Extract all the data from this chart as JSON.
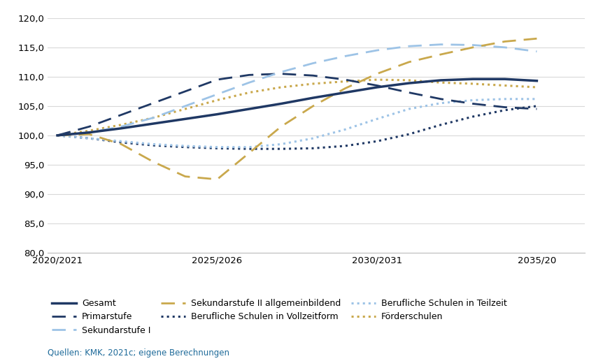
{
  "series": {
    "Gesamt": {
      "x": [
        2020,
        2021,
        2022,
        2023,
        2024,
        2025,
        2026,
        2027,
        2028,
        2029,
        2030,
        2031,
        2032,
        2033,
        2034,
        2035
      ],
      "y": [
        100.0,
        100.5,
        101.2,
        102.0,
        102.8,
        103.6,
        104.5,
        105.4,
        106.4,
        107.3,
        108.2,
        108.9,
        109.4,
        109.6,
        109.6,
        109.3
      ],
      "color": "#1f3864",
      "linestyle": "solid",
      "linewidth": 2.5
    },
    "Primarstufe": {
      "x": [
        2020,
        2021,
        2022,
        2023,
        2024,
        2025,
        2026,
        2027,
        2028,
        2029,
        2030,
        2031,
        2032,
        2033,
        2034,
        2035
      ],
      "y": [
        100.0,
        101.5,
        103.5,
        105.5,
        107.5,
        109.5,
        110.3,
        110.5,
        110.2,
        109.5,
        108.5,
        107.3,
        106.2,
        105.4,
        104.8,
        104.5
      ],
      "color": "#1f3864",
      "linestyle": "dashed",
      "linewidth": 2.0
    },
    "Sekundarstufe I": {
      "x": [
        2020,
        2021,
        2022,
        2023,
        2024,
        2025,
        2026,
        2027,
        2028,
        2029,
        2030,
        2031,
        2032,
        2033,
        2034,
        2035
      ],
      "y": [
        100.0,
        100.5,
        101.5,
        103.0,
        105.0,
        107.0,
        109.0,
        110.8,
        112.3,
        113.5,
        114.5,
        115.2,
        115.5,
        115.4,
        115.0,
        114.3
      ],
      "color": "#9dc3e6",
      "linestyle": "dashed",
      "linewidth": 2.0
    },
    "Sekundarstufe II allgemeinbildend": {
      "x": [
        2020,
        2021,
        2022,
        2023,
        2024,
        2025,
        2026,
        2027,
        2028,
        2029,
        2030,
        2031,
        2032,
        2033,
        2034,
        2035
      ],
      "y": [
        100.0,
        100.2,
        98.5,
        95.5,
        93.0,
        92.5,
        97.0,
        101.5,
        105.0,
        108.0,
        110.5,
        112.5,
        113.8,
        115.0,
        116.0,
        116.5
      ],
      "color": "#c9a84c",
      "linestyle": "dashed",
      "linewidth": 2.0
    },
    "Berufliche Schulen in Vollzeitform": {
      "x": [
        2020,
        2021,
        2022,
        2023,
        2024,
        2025,
        2026,
        2027,
        2028,
        2029,
        2030,
        2031,
        2032,
        2033,
        2034,
        2035
      ],
      "y": [
        100.0,
        99.5,
        98.8,
        98.3,
        98.0,
        97.8,
        97.7,
        97.7,
        97.8,
        98.2,
        99.0,
        100.2,
        101.8,
        103.2,
        104.3,
        105.0
      ],
      "color": "#1f3864",
      "linestyle": "dotted",
      "linewidth": 2.2
    },
    "Berufliche Schulen in Teilzeit": {
      "x": [
        2020,
        2021,
        2022,
        2023,
        2024,
        2025,
        2026,
        2027,
        2028,
        2029,
        2030,
        2031,
        2032,
        2033,
        2034,
        2035
      ],
      "y": [
        100.0,
        99.5,
        99.0,
        98.5,
        98.2,
        98.0,
        98.0,
        98.5,
        99.5,
        101.0,
        102.8,
        104.5,
        105.5,
        106.0,
        106.2,
        106.2
      ],
      "color": "#9dc3e6",
      "linestyle": "dotted",
      "linewidth": 2.2
    },
    "Foerderschulen": {
      "x": [
        2020,
        2021,
        2022,
        2023,
        2024,
        2025,
        2026,
        2027,
        2028,
        2029,
        2030,
        2031,
        2032,
        2033,
        2034,
        2035
      ],
      "y": [
        100.0,
        100.8,
        101.8,
        103.0,
        104.5,
        106.0,
        107.3,
        108.2,
        108.8,
        109.2,
        109.5,
        109.4,
        109.0,
        108.8,
        108.5,
        108.2
      ],
      "color": "#c9a84c",
      "linestyle": "dotted",
      "linewidth": 2.2
    }
  },
  "ylim": [
    80.0,
    120.0
  ],
  "yticks": [
    80.0,
    85.0,
    90.0,
    95.0,
    100.0,
    105.0,
    110.0,
    115.0,
    120.0
  ],
  "xlim_min": 2019.7,
  "xlim_max": 2036.5,
  "xtick_positions": [
    2020,
    2025,
    2030,
    2035
  ],
  "xtick_labels": [
    "2020/2021",
    "2025/2026",
    "2030/2031",
    "2035/20"
  ],
  "legend_entries": [
    {
      "label": "Gesamt",
      "color": "#1f3864",
      "ls": "solid",
      "lw": 2.5
    },
    {
      "label": "Primarstufe",
      "color": "#1f3864",
      "ls": "dashed",
      "lw": 2.0
    },
    {
      "label": "Sekundarstufe I",
      "color": "#9dc3e6",
      "ls": "dashed",
      "lw": 2.0
    },
    {
      "label": "Sekundarstufe II allgemeinbildend",
      "color": "#c9a84c",
      "ls": "dashed",
      "lw": 2.0
    },
    {
      "label": "Berufliche Schulen in Vollzeitform",
      "color": "#1f3864",
      "ls": "dotted",
      "lw": 2.2
    },
    {
      "label": "Berufliche Schulen in Teilzeit",
      "color": "#9dc3e6",
      "ls": "dotted",
      "lw": 2.2
    },
    {
      "label": "Förderschulen",
      "color": "#c9a84c",
      "ls": "dotted",
      "lw": 2.2
    }
  ],
  "source_text": "Quellen: KMK, 2021c; eigene Berechnungen",
  "background_color": "#ffffff",
  "grid_color": "#d9d9d9"
}
